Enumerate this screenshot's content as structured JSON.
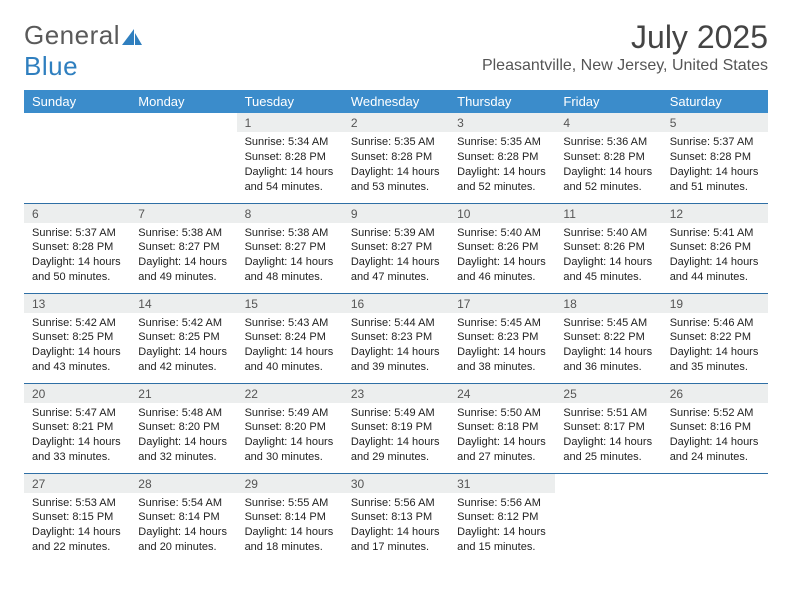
{
  "logo": {
    "text1": "General",
    "text2": "Blue",
    "sail_color": "#2f7fbf"
  },
  "header": {
    "title": "July 2025",
    "location": "Pleasantville, New Jersey, United States"
  },
  "calendar": {
    "day_names": [
      "Sunday",
      "Monday",
      "Tuesday",
      "Wednesday",
      "Thursday",
      "Friday",
      "Saturday"
    ],
    "header_bg": "#3b8ccb",
    "row_border": "#2f6fa5",
    "daynum_bg": "#eceeee",
    "weeks": [
      [
        null,
        null,
        {
          "n": "1",
          "sunrise": "5:34 AM",
          "sunset": "8:28 PM",
          "daylight": "14 hours and 54 minutes."
        },
        {
          "n": "2",
          "sunrise": "5:35 AM",
          "sunset": "8:28 PM",
          "daylight": "14 hours and 53 minutes."
        },
        {
          "n": "3",
          "sunrise": "5:35 AM",
          "sunset": "8:28 PM",
          "daylight": "14 hours and 52 minutes."
        },
        {
          "n": "4",
          "sunrise": "5:36 AM",
          "sunset": "8:28 PM",
          "daylight": "14 hours and 52 minutes."
        },
        {
          "n": "5",
          "sunrise": "5:37 AM",
          "sunset": "8:28 PM",
          "daylight": "14 hours and 51 minutes."
        }
      ],
      [
        {
          "n": "6",
          "sunrise": "5:37 AM",
          "sunset": "8:28 PM",
          "daylight": "14 hours and 50 minutes."
        },
        {
          "n": "7",
          "sunrise": "5:38 AM",
          "sunset": "8:27 PM",
          "daylight": "14 hours and 49 minutes."
        },
        {
          "n": "8",
          "sunrise": "5:38 AM",
          "sunset": "8:27 PM",
          "daylight": "14 hours and 48 minutes."
        },
        {
          "n": "9",
          "sunrise": "5:39 AM",
          "sunset": "8:27 PM",
          "daylight": "14 hours and 47 minutes."
        },
        {
          "n": "10",
          "sunrise": "5:40 AM",
          "sunset": "8:26 PM",
          "daylight": "14 hours and 46 minutes."
        },
        {
          "n": "11",
          "sunrise": "5:40 AM",
          "sunset": "8:26 PM",
          "daylight": "14 hours and 45 minutes."
        },
        {
          "n": "12",
          "sunrise": "5:41 AM",
          "sunset": "8:26 PM",
          "daylight": "14 hours and 44 minutes."
        }
      ],
      [
        {
          "n": "13",
          "sunrise": "5:42 AM",
          "sunset": "8:25 PM",
          "daylight": "14 hours and 43 minutes."
        },
        {
          "n": "14",
          "sunrise": "5:42 AM",
          "sunset": "8:25 PM",
          "daylight": "14 hours and 42 minutes."
        },
        {
          "n": "15",
          "sunrise": "5:43 AM",
          "sunset": "8:24 PM",
          "daylight": "14 hours and 40 minutes."
        },
        {
          "n": "16",
          "sunrise": "5:44 AM",
          "sunset": "8:23 PM",
          "daylight": "14 hours and 39 minutes."
        },
        {
          "n": "17",
          "sunrise": "5:45 AM",
          "sunset": "8:23 PM",
          "daylight": "14 hours and 38 minutes."
        },
        {
          "n": "18",
          "sunrise": "5:45 AM",
          "sunset": "8:22 PM",
          "daylight": "14 hours and 36 minutes."
        },
        {
          "n": "19",
          "sunrise": "5:46 AM",
          "sunset": "8:22 PM",
          "daylight": "14 hours and 35 minutes."
        }
      ],
      [
        {
          "n": "20",
          "sunrise": "5:47 AM",
          "sunset": "8:21 PM",
          "daylight": "14 hours and 33 minutes."
        },
        {
          "n": "21",
          "sunrise": "5:48 AM",
          "sunset": "8:20 PM",
          "daylight": "14 hours and 32 minutes."
        },
        {
          "n": "22",
          "sunrise": "5:49 AM",
          "sunset": "8:20 PM",
          "daylight": "14 hours and 30 minutes."
        },
        {
          "n": "23",
          "sunrise": "5:49 AM",
          "sunset": "8:19 PM",
          "daylight": "14 hours and 29 minutes."
        },
        {
          "n": "24",
          "sunrise": "5:50 AM",
          "sunset": "8:18 PM",
          "daylight": "14 hours and 27 minutes."
        },
        {
          "n": "25",
          "sunrise": "5:51 AM",
          "sunset": "8:17 PM",
          "daylight": "14 hours and 25 minutes."
        },
        {
          "n": "26",
          "sunrise": "5:52 AM",
          "sunset": "8:16 PM",
          "daylight": "14 hours and 24 minutes."
        }
      ],
      [
        {
          "n": "27",
          "sunrise": "5:53 AM",
          "sunset": "8:15 PM",
          "daylight": "14 hours and 22 minutes."
        },
        {
          "n": "28",
          "sunrise": "5:54 AM",
          "sunset": "8:14 PM",
          "daylight": "14 hours and 20 minutes."
        },
        {
          "n": "29",
          "sunrise": "5:55 AM",
          "sunset": "8:14 PM",
          "daylight": "14 hours and 18 minutes."
        },
        {
          "n": "30",
          "sunrise": "5:56 AM",
          "sunset": "8:13 PM",
          "daylight": "14 hours and 17 minutes."
        },
        {
          "n": "31",
          "sunrise": "5:56 AM",
          "sunset": "8:12 PM",
          "daylight": "14 hours and 15 minutes."
        },
        null,
        null
      ]
    ],
    "labels": {
      "sunrise": "Sunrise:",
      "sunset": "Sunset:",
      "daylight": "Daylight:"
    }
  }
}
